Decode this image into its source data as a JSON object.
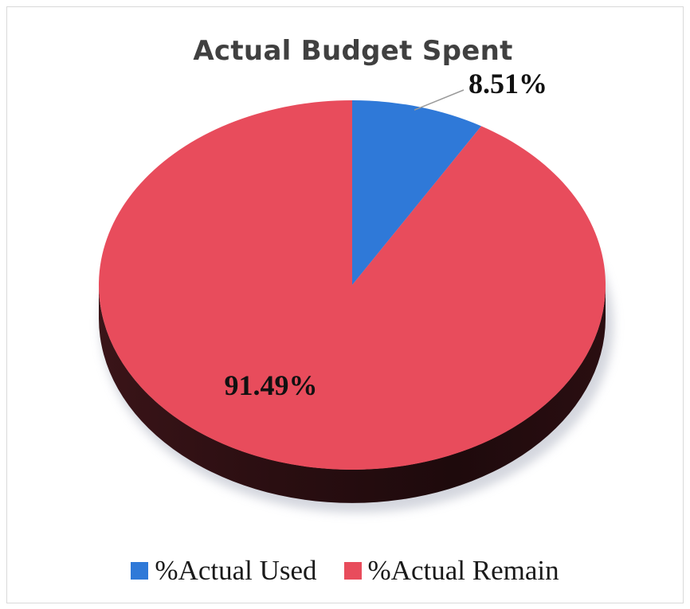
{
  "chart_data": {
    "type": "pie",
    "title": "Actual Budget Spent",
    "slices": [
      {
        "label": "%Actual Used",
        "value": 8.51,
        "display": "8.51%",
        "color": "#2f79d8"
      },
      {
        "label": "%Actual Remain",
        "value": 91.49,
        "display": "91.49%",
        "color": "#e84c5c"
      }
    ],
    "legend_position": "bottom",
    "style": "3d"
  }
}
